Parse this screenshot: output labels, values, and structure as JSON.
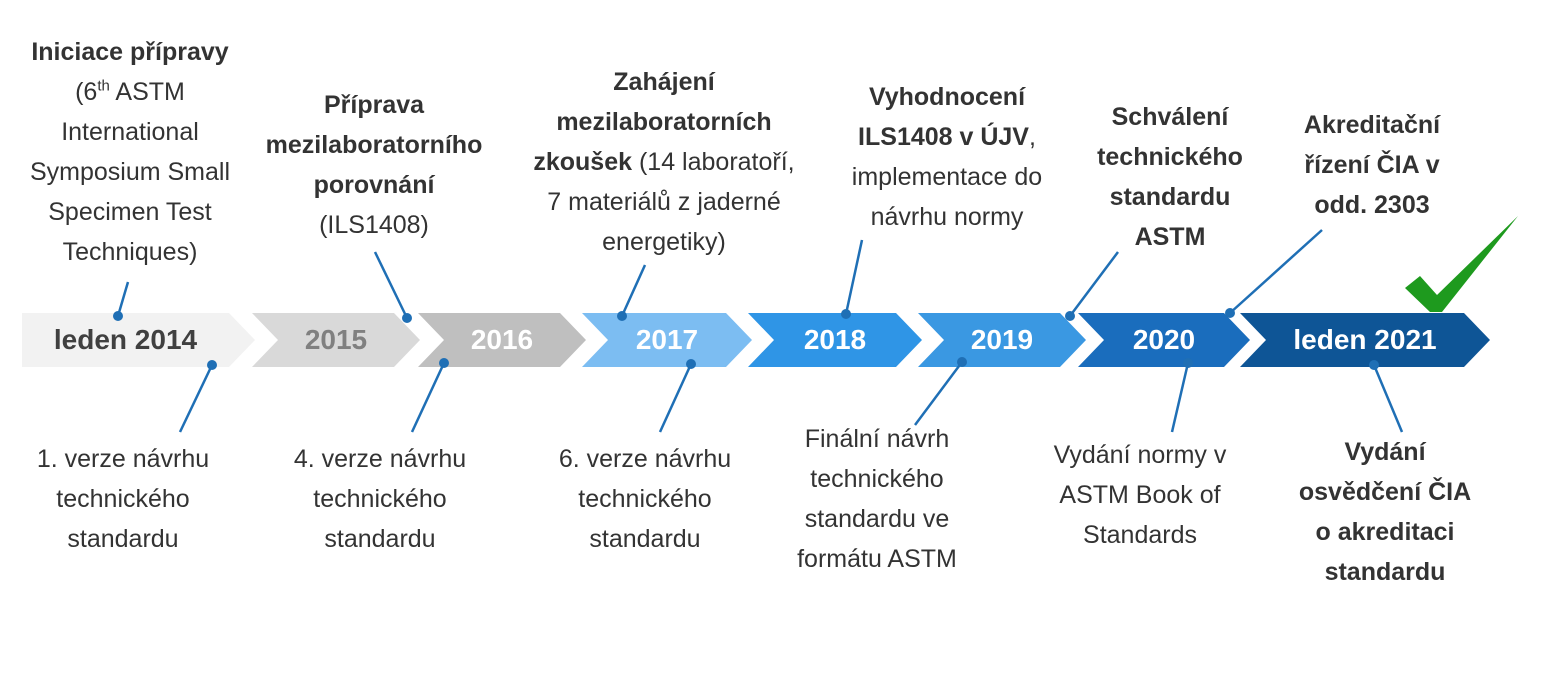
{
  "stages": [
    "leden 2014",
    "2015",
    "2016",
    "2017",
    "2018",
    "2019",
    "2020",
    "leden 2021"
  ],
  "above": [
    {
      "lines": [
        [
          {
            "text": "Iniciace přípravy",
            "style": "bold"
          }
        ],
        [
          {
            "text": "(6",
            "style": "normal"
          },
          {
            "text": "th",
            "style": "sup"
          },
          {
            "text": " ASTM",
            "style": "normal"
          }
        ],
        [
          {
            "text": "International",
            "style": "normal"
          }
        ],
        [
          {
            "text": "Symposium Small",
            "style": "normal"
          }
        ],
        [
          {
            "text": "Specimen Test",
            "style": "normal"
          }
        ],
        [
          {
            "text": "Techniques)",
            "style": "normal"
          }
        ]
      ]
    },
    {
      "lines": [
        [
          {
            "text": "Příprava",
            "style": "bold"
          }
        ],
        [
          {
            "text": "mezilaboratorního",
            "style": "bold"
          }
        ],
        [
          {
            "text": "porovnání",
            "style": "bold"
          }
        ],
        [
          {
            "text": "(ILS1408)",
            "style": "normal"
          }
        ]
      ]
    },
    {
      "lines": [
        [
          {
            "text": "Zahájení",
            "style": "bold"
          }
        ],
        [
          {
            "text": "mezilaboratorních",
            "style": "bold"
          }
        ],
        [
          {
            "text": "zkoušek",
            "style": "bold"
          },
          {
            "text": " (14 laboratoří,",
            "style": "normal"
          }
        ],
        [
          {
            "text": "7 materiálů z jaderné",
            "style": "normal"
          }
        ],
        [
          {
            "text": "energetiky)",
            "style": "normal"
          }
        ]
      ]
    },
    {
      "lines": [
        [
          {
            "text": "Vyhodnocení",
            "style": "bold"
          }
        ],
        [
          {
            "text": "ILS1408 v ÚJV",
            "style": "bold"
          },
          {
            "text": ",",
            "style": "normal"
          }
        ],
        [
          {
            "text": "implementace do",
            "style": "normal"
          }
        ],
        [
          {
            "text": "návrhu normy",
            "style": "normal"
          }
        ]
      ]
    },
    {
      "lines": [
        [
          {
            "text": "Schválení",
            "style": "bold"
          }
        ],
        [
          {
            "text": "technického",
            "style": "bold"
          }
        ],
        [
          {
            "text": "standardu",
            "style": "bold"
          }
        ],
        [
          {
            "text": "ASTM",
            "style": "bold"
          }
        ]
      ]
    },
    {
      "lines": [
        [
          {
            "text": "Akreditační",
            "style": "bold"
          }
        ],
        [
          {
            "text": "řízení ČIA v",
            "style": "bold"
          }
        ],
        [
          {
            "text": "odd. 2303",
            "style": "bold"
          }
        ]
      ]
    }
  ],
  "below": [
    {
      "lines": [
        [
          {
            "text": "1. verze návrhu",
            "style": "normal"
          }
        ],
        [
          {
            "text": "technického",
            "style": "normal"
          }
        ],
        [
          {
            "text": "standardu",
            "style": "normal"
          }
        ]
      ]
    },
    {
      "lines": [
        [
          {
            "text": "4. verze návrhu",
            "style": "normal"
          }
        ],
        [
          {
            "text": "technického",
            "style": "normal"
          }
        ],
        [
          {
            "text": "standardu",
            "style": "normal"
          }
        ]
      ]
    },
    {
      "lines": [
        [
          {
            "text": "6. verze návrhu",
            "style": "normal"
          }
        ],
        [
          {
            "text": "technického",
            "style": "normal"
          }
        ],
        [
          {
            "text": "standardu",
            "style": "normal"
          }
        ]
      ]
    },
    {
      "lines": [
        [
          {
            "text": "Finální návrh",
            "style": "normal"
          }
        ],
        [
          {
            "text": "technického",
            "style": "normal"
          }
        ],
        [
          {
            "text": "standardu ve",
            "style": "normal"
          }
        ],
        [
          {
            "text": "formátu ASTM",
            "style": "normal"
          }
        ]
      ]
    },
    {
      "lines": [
        [
          {
            "text": "Vydání normy v",
            "style": "normal"
          }
        ],
        [
          {
            "text": "ASTM Book of",
            "style": "normal"
          }
        ],
        [
          {
            "text": "Standards",
            "style": "normal"
          }
        ]
      ]
    },
    {
      "lines": [
        [
          {
            "text": "Vydání",
            "style": "bold"
          }
        ],
        [
          {
            "text": "osvědčení ČIA",
            "style": "bold"
          }
        ],
        [
          {
            "text": "o akreditaci",
            "style": "bold"
          }
        ],
        [
          {
            "text": "standardu",
            "style": "bold"
          }
        ]
      ]
    }
  ]
}
